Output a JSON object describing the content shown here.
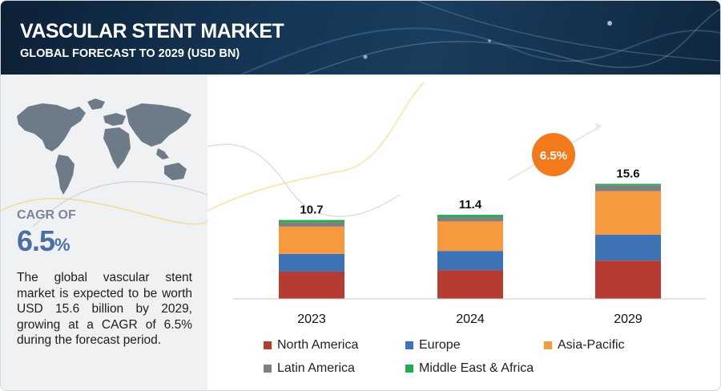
{
  "header": {
    "title": "VASCULAR STENT MARKET",
    "subtitle": "GLOBAL FORECAST TO 2029 (USD BN)"
  },
  "sidebar": {
    "cagr_label": "CAGR OF",
    "cagr_value": "6.5",
    "cagr_unit": "%",
    "description": "The global vascular stent market is expected to be worth USD 15.6 billion by 2029, growing at a CAGR of 6.5% during the forecast period."
  },
  "chart_data": {
    "type": "bar",
    "stacked": true,
    "categories": [
      "2023",
      "2024",
      "2029"
    ],
    "totals": [
      "10.7",
      "11.4",
      "15.6"
    ],
    "cagr_badge": "6.5%",
    "series": [
      {
        "name": "North America",
        "color": "#b63c32",
        "values": [
          3.7,
          3.9,
          5.2
        ]
      },
      {
        "name": "Europe",
        "color": "#3d72b4",
        "values": [
          2.4,
          2.6,
          3.5
        ]
      },
      {
        "name": "Asia-Pacific",
        "color": "#f7993e",
        "values": [
          3.7,
          4.0,
          5.9
        ]
      },
      {
        "name": "Latin America",
        "color": "#7f7f7f",
        "values": [
          0.6,
          0.6,
          0.8
        ]
      },
      {
        "name": "Middle East & Africa",
        "color": "#1fac4e",
        "values": [
          0.3,
          0.3,
          0.2
        ]
      }
    ],
    "legend_position": "bottom",
    "grid": false
  },
  "colors": {
    "header_bg": "#143554",
    "accent": "#4a6fa5",
    "badge": "#f27a1a"
  }
}
